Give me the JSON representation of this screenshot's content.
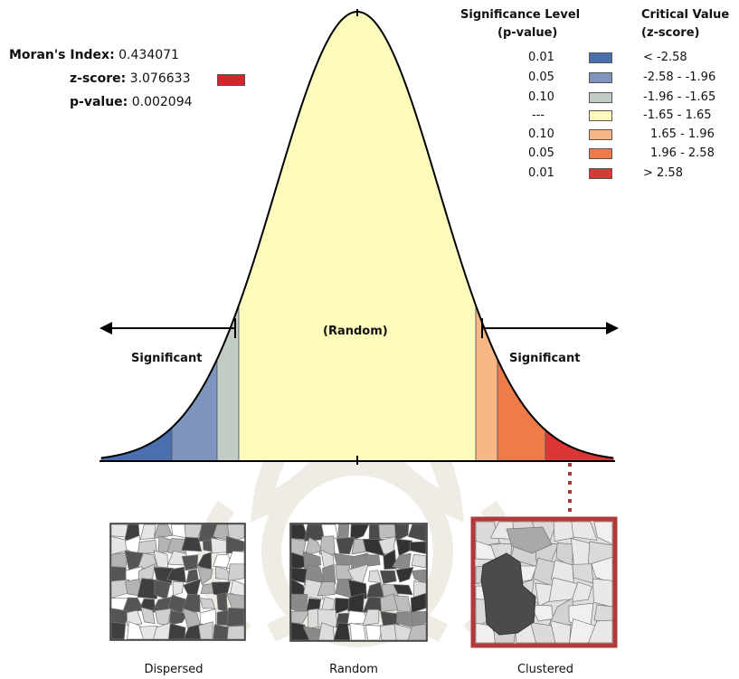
{
  "stats": {
    "moran_label": "Moran's Index:",
    "moran_value": "0.434071",
    "z_label": "z-score:",
    "z_value": "3.076633",
    "p_label": "p-value:",
    "p_value": "0.002094",
    "z_swatch_color": "#d7262b"
  },
  "legend": {
    "sig_header_1": "Significance Level",
    "sig_header_2": "(p-value)",
    "crit_header_1": "Critical Value",
    "crit_header_2": "(z-score)",
    "rows": [
      {
        "p": "0.01",
        "z": "< -2.58",
        "color": "#4a6fae"
      },
      {
        "p": "0.05",
        "z": "-2.58 - -1.96",
        "color": "#7f95be"
      },
      {
        "p": "0.10",
        "z": "-1.96 - -1.65",
        "color": "#c2ccc4"
      },
      {
        "p": "---",
        "z": "-1.65 - 1.65",
        "color": "#fcfbbb"
      },
      {
        "p": "0.10",
        "z": "1.65 - 1.96",
        "color": "#f6b685"
      },
      {
        "p": "0.05",
        "z": "1.96 - 2.58",
        "color": "#ee7b4a"
      },
      {
        "p": "0.01",
        "z": "> 2.58",
        "color": "#dc3535"
      }
    ]
  },
  "diagram": {
    "random_label": "(Random)",
    "left_label": "Significant",
    "right_label": "Significant"
  },
  "thumbnails": [
    {
      "caption": "Dispersed",
      "highlighted": false
    },
    {
      "caption": "Random",
      "highlighted": false
    },
    {
      "caption": "Clustered",
      "highlighted": true
    }
  ]
}
